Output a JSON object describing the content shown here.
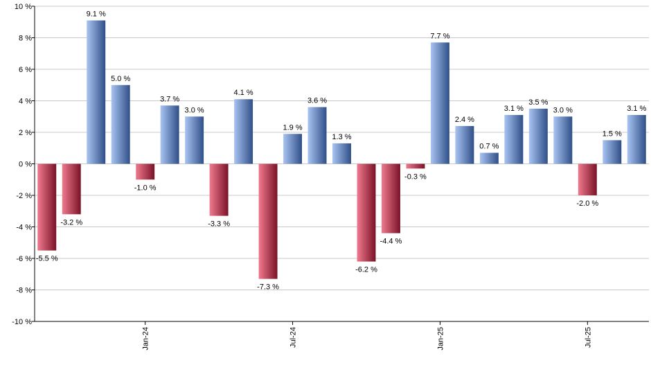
{
  "chart_data": {
    "type": "bar",
    "value_suffix": " %",
    "values": [
      -5.5,
      -3.2,
      9.1,
      5.0,
      -1.0,
      3.7,
      3.0,
      -3.3,
      4.1,
      -7.3,
      1.9,
      3.6,
      1.3,
      -6.2,
      -4.4,
      -0.3,
      7.7,
      2.4,
      0.7,
      3.1,
      3.5,
      3.0,
      -2.0,
      1.5,
      3.1
    ],
    "data_labels": [
      "-5.5 %",
      "-3.2 %",
      "9.1 %",
      "5.0 %",
      "-1.0 %",
      "3.7 %",
      "3.0 %",
      "-3.3 %",
      "4.1 %",
      "-7.3 %",
      "1.9 %",
      "3.6 %",
      "1.3 %",
      "-6.2 %",
      "-4.4 %",
      "-0.3 %",
      "7.7 %",
      "2.4 %",
      "0.7 %",
      "3.1 %",
      "3.5 %",
      "3.0 %",
      "-2.0 %",
      "1.5 %",
      "3.1 %"
    ],
    "x_tick_labels": [
      {
        "index": 4.5,
        "label": "Jan-24"
      },
      {
        "index": 10.5,
        "label": "Jul-24"
      },
      {
        "index": 16.5,
        "label": "Jan-25"
      },
      {
        "index": 22.5,
        "label": "Jul-25"
      }
    ],
    "y_ticks": [
      10,
      8,
      6,
      4,
      2,
      0,
      -2,
      -4,
      -6,
      -8,
      -10
    ],
    "y_tick_labels": [
      "10 %",
      "8 %",
      "6 %",
      "4 %",
      "2 %",
      "0 %",
      "-2 %",
      "-4 %",
      "-6 %",
      "-8 %",
      "-10 %"
    ],
    "ylim": [
      -10,
      10
    ],
    "title": "",
    "xlabel": "",
    "ylabel": "",
    "grid": true,
    "colors": {
      "positive_light": "#a9c4f2",
      "positive_dark": "#2f4f88",
      "negative_light": "#f07a8e",
      "negative_dark": "#7a1227",
      "grid": "#c8c8c8",
      "axis": "#000000"
    }
  }
}
